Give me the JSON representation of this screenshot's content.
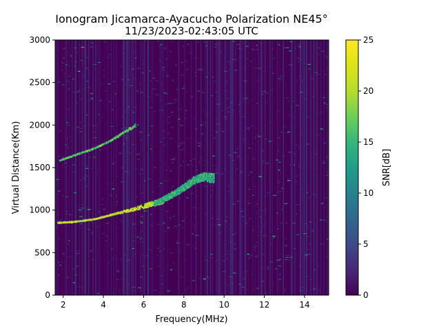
{
  "chart_data": {
    "type": "heatmap",
    "title_line1": "Ionogram Jicamarca-Ayacucho Polarization NE45°",
    "title_line2": "11/23/2023-02:43:05 UTC",
    "xlabel": "Frequency(MHz)",
    "ylabel": "Virtual Distance(Km)",
    "xlim": [
      1.6,
      15.2
    ],
    "ylim": [
      0,
      3000
    ],
    "x_ticks": [
      2,
      4,
      6,
      8,
      10,
      12,
      14
    ],
    "y_ticks": [
      0,
      500,
      1000,
      1500,
      2000,
      2500,
      3000
    ],
    "colorbar": {
      "label": "SNR[dB]",
      "range": [
        0,
        25
      ],
      "ticks": [
        0,
        5,
        10,
        15,
        20,
        25
      ],
      "colormap": "viridis"
    },
    "background_color": "#440154",
    "traces": [
      {
        "name": "",
        "points": [
          [
            1.7,
            860
          ],
          [
            2.5,
            870
          ],
          [
            3.5,
            900
          ],
          [
            4.5,
            960
          ],
          [
            5.5,
            1020
          ],
          [
            6.5,
            1090
          ],
          [
            7.0,
            1120
          ]
        ],
        "snr": 25
      },
      {
        "name": "",
        "points": [
          [
            1.8,
            1590
          ],
          [
            2.5,
            1650
          ],
          [
            3.5,
            1730
          ],
          [
            4.3,
            1820
          ],
          [
            5.0,
            1920
          ],
          [
            5.6,
            2010
          ]
        ],
        "snr": 20
      },
      {
        "name": "",
        "points": [
          [
            6.5,
            1080
          ],
          [
            7.5,
            1200
          ],
          [
            8.0,
            1280
          ],
          [
            8.5,
            1360
          ],
          [
            9.0,
            1400
          ],
          [
            9.5,
            1380
          ]
        ],
        "snr": 18
      }
    ]
  }
}
